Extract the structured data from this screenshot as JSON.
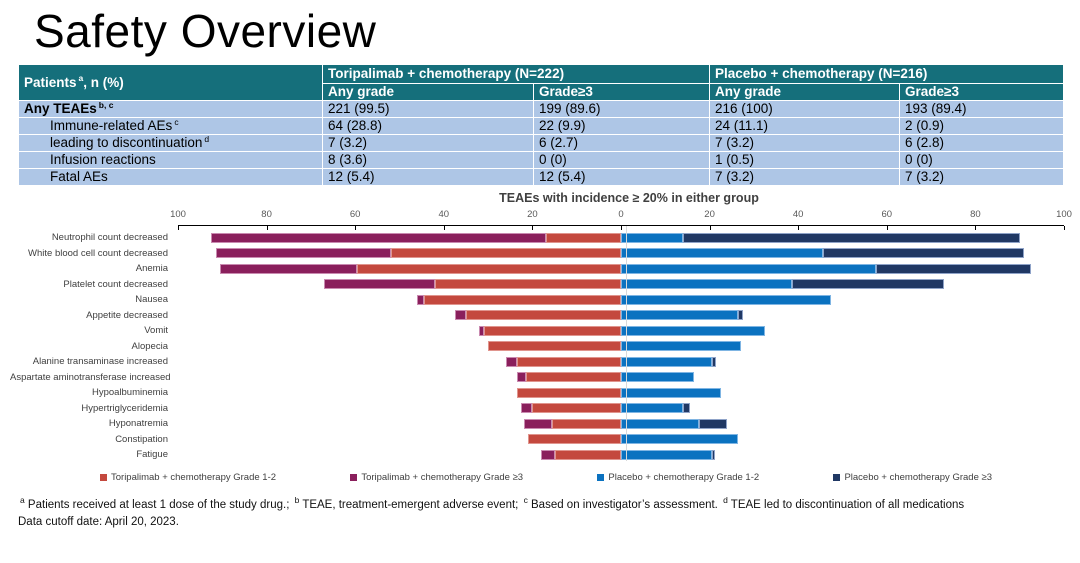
{
  "title": "Safety Overview",
  "colors": {
    "table_header_bg": "#156f7b",
    "table_row_bg": "#aec6e6",
    "axis_line": "#000000",
    "zero_gridline": "#d9d9d9"
  },
  "table": {
    "header": {
      "col0": {
        "text": "Patients",
        "sup": "a",
        "suffix": ", n (%)"
      },
      "group1": "Toripalimab + chemotherapy (N=222)",
      "group2": "Placebo + chemotherapy (N=216)",
      "sub": [
        "Any grade",
        "Grade≥3",
        "Any grade",
        "Grade≥3"
      ]
    },
    "rows": [
      {
        "label": "Any TEAEs",
        "sup": "b, c",
        "bold": true,
        "indent": false,
        "values": [
          "221 (99.5)",
          "199 (89.6)",
          "216 (100)",
          "193 (89.4)"
        ]
      },
      {
        "label": "Immune-related AEs",
        "sup": "c",
        "bold": false,
        "indent": true,
        "values": [
          "64 (28.8)",
          "22 (9.9)",
          "24 (11.1)",
          "2 (0.9)"
        ]
      },
      {
        "label": "leading to discontinuation",
        "sup": "d",
        "bold": false,
        "indent": true,
        "values": [
          "7 (3.2)",
          "6 (2.7)",
          "7 (3.2)",
          "6 (2.8)"
        ]
      },
      {
        "label": "Infusion reactions",
        "sup": "",
        "bold": false,
        "indent": true,
        "values": [
          "8 (3.6)",
          "0 (0)",
          "1 (0.5)",
          "0 (0)"
        ]
      },
      {
        "label": "Fatal AEs",
        "sup": "",
        "bold": false,
        "indent": true,
        "values": [
          "12 (5.4)",
          "12 (5.4)",
          "7 (3.2)",
          "7 (3.2)"
        ]
      }
    ]
  },
  "chart_data": {
    "type": "bar",
    "orientation": "horizontal-diverging",
    "title": "TEAEs with incidence ≥ 20% in either group",
    "axis_ticks": [
      100,
      80,
      60,
      40,
      20,
      0,
      20,
      40,
      60,
      80,
      100
    ],
    "xlim": [
      -100,
      100
    ],
    "grid": "zero-line-only",
    "legend_position": "bottom",
    "categories": [
      "Neutrophil count decreased",
      "White blood cell count decreased",
      "Anemia",
      "Platelet count decreased",
      "Nausea",
      "Appetite decreased",
      "Vomit",
      "Alopecia",
      "Alanine transaminase increased",
      "Aspartate aminotransferase increased",
      "Hypoalbuminemia",
      "Hypertriglyceridemia",
      "Hyponatremia",
      "Constipation",
      "Fatigue"
    ],
    "series": [
      {
        "name": "Toripalimab + chemotherapy Grade 1-2",
        "side": "left",
        "stack_order": "inner",
        "color": "#c4493e",
        "edge": "#e0958e",
        "values": [
          17,
          52,
          59.5,
          42,
          44.5,
          35,
          31,
          30,
          23.5,
          21.5,
          23.5,
          20,
          15.5,
          21,
          15
        ]
      },
      {
        "name": "Toripalimab + chemotherapy Grade ≥3",
        "side": "left",
        "stack_order": "outer",
        "color": "#8a1f5c",
        "edge": "#c98ab0",
        "values": [
          75.5,
          39.5,
          31,
          25,
          1.5,
          2.5,
          1,
          0,
          2.5,
          2,
          0,
          2.5,
          6.5,
          0,
          3
        ]
      },
      {
        "name": "Placebo + chemotherapy Grade 1-2",
        "side": "right",
        "stack_order": "inner",
        "color": "#0b72c0",
        "edge": "#7fb5e3",
        "values": [
          14,
          45.5,
          57.5,
          38.5,
          47.5,
          26.5,
          32.5,
          27,
          20.5,
          16.5,
          22.5,
          14,
          17.5,
          26.5,
          20.5
        ]
      },
      {
        "name": "Placebo + chemotherapy Grade ≥3",
        "side": "right",
        "stack_order": "outer",
        "color": "#203864",
        "edge": "#8fa3c8",
        "values": [
          76,
          45.5,
          35,
          34.5,
          0,
          1,
          0,
          0,
          1,
          0,
          0,
          1.5,
          6.5,
          0,
          0.5
        ]
      }
    ]
  },
  "footnotes": {
    "line1": [
      {
        "sup": "a",
        "text": " Patients received at least 1 dose of the study drug.;  "
      },
      {
        "sup": "b",
        "text": " TEAE, treatment-emergent adverse event;  "
      },
      {
        "sup": "c",
        "text": " Based on investigator’s assessment. "
      },
      {
        "sup": "d",
        "text": " TEAE led to discontinuation of all medications"
      }
    ],
    "line2": "Data cutoff date: April 20, 2023."
  }
}
